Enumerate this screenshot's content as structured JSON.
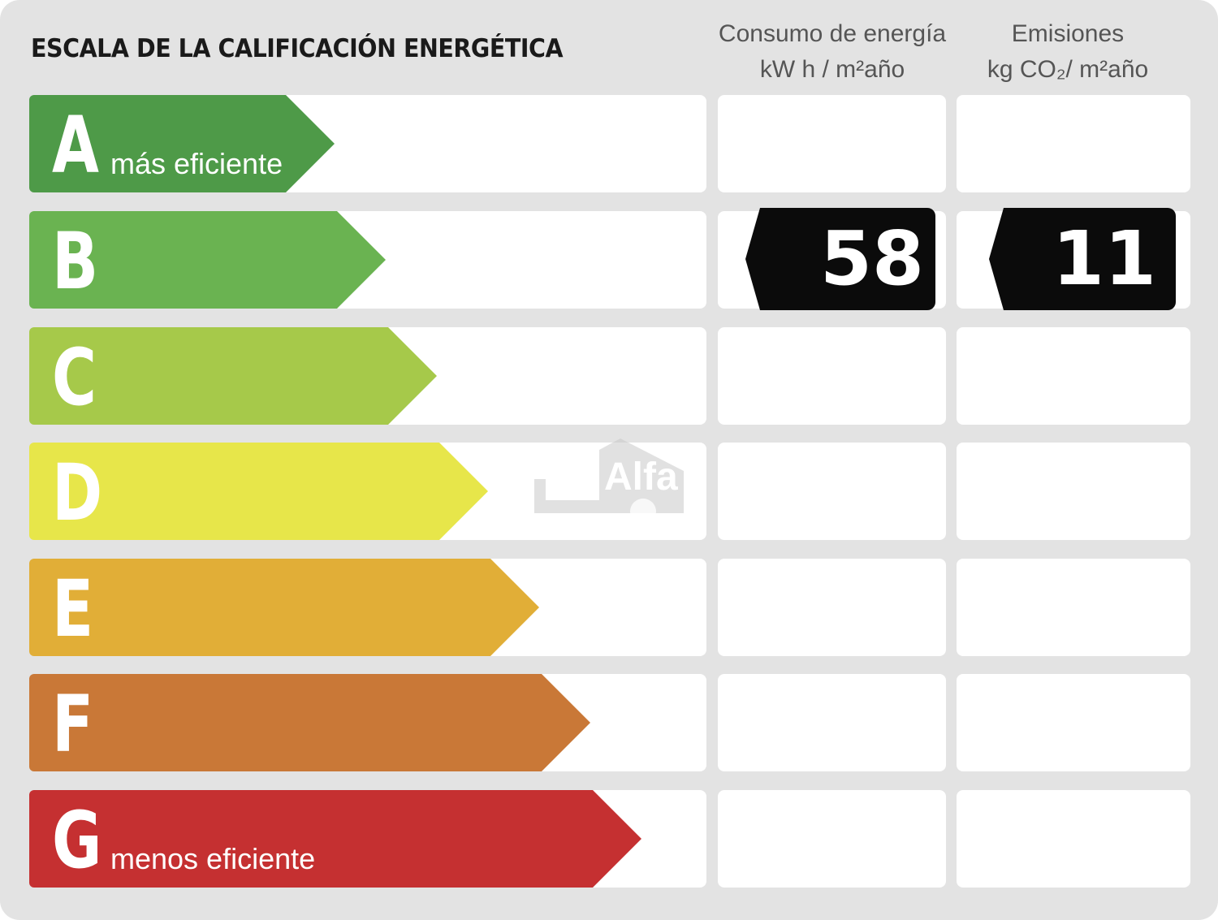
{
  "title": "ESCALA DE LA CALIFICACIÓN ENERGÉTICA",
  "columns": {
    "consumo": {
      "line1": "Consumo de energía",
      "line2": "kW h / m²año"
    },
    "emisiones": {
      "line1": "Emisiones",
      "line2": "kg CO₂/ m²año"
    }
  },
  "ratings": [
    {
      "letter": "A",
      "sublabel": "más eficiente",
      "color": "#4e9a48"
    },
    {
      "letter": "B",
      "sublabel": "",
      "color": "#6ab351"
    },
    {
      "letter": "C",
      "sublabel": "",
      "color": "#a6c94a"
    },
    {
      "letter": "D",
      "sublabel": "",
      "color": "#e7e64a"
    },
    {
      "letter": "E",
      "sublabel": "",
      "color": "#e1ae37"
    },
    {
      "letter": "F",
      "sublabel": "",
      "color": "#c97837"
    },
    {
      "letter": "G",
      "sublabel": "menos eficiente",
      "color": "#c53031"
    }
  ],
  "result": {
    "rating": "B",
    "consumo_value": "58",
    "emisiones_value": "11"
  },
  "watermark": {
    "text": "Alfa"
  }
}
